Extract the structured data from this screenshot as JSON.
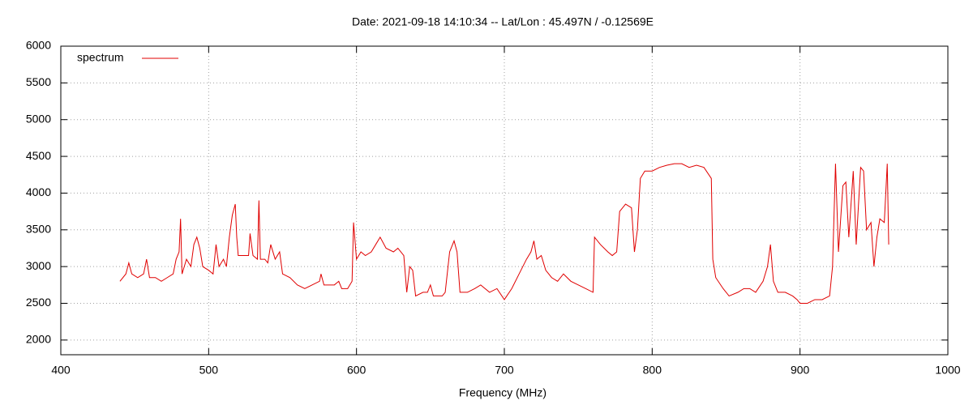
{
  "chart_data": {
    "type": "line",
    "title": "Date: 2021-09-18 14:10:34  --  Lat/Lon : 45.497N / -0.12569E",
    "xlabel": "Frequency (MHz)",
    "x": [
      440,
      444,
      446,
      448,
      452,
      456,
      458,
      460,
      464,
      468,
      472,
      476,
      478,
      480,
      481,
      482,
      485,
      488,
      490,
      492,
      494,
      496,
      500,
      503,
      505,
      507,
      510,
      512,
      514,
      516,
      518,
      519,
      520,
      524,
      527,
      528,
      530,
      533,
      534,
      535,
      538,
      540,
      542,
      545,
      548,
      550,
      555,
      560,
      565,
      570,
      575,
      576,
      578,
      585,
      588,
      590,
      594,
      597,
      598,
      600,
      603,
      606,
      610,
      613,
      616,
      620,
      625,
      628,
      632,
      634,
      636,
      638,
      640,
      645,
      648,
      650,
      652,
      658,
      660,
      663,
      666,
      668,
      670,
      675,
      680,
      684,
      690,
      695,
      700,
      705,
      710,
      715,
      718,
      720,
      722,
      725,
      728,
      732,
      736,
      740,
      745,
      750,
      755,
      760,
      761,
      765,
      770,
      773,
      776,
      778,
      782,
      786,
      788,
      790,
      792,
      795,
      800,
      805,
      810,
      815,
      820,
      825,
      830,
      835,
      840,
      841,
      843,
      848,
      852,
      858,
      862,
      866,
      870,
      875,
      878,
      880,
      882,
      885,
      890,
      895,
      898,
      900,
      905,
      910,
      915,
      920,
      922,
      924,
      926,
      929,
      931,
      933,
      936,
      938,
      941,
      943,
      945,
      948,
      950,
      952,
      954,
      957,
      959,
      960
    ],
    "series": [
      {
        "name": "spectrum",
        "color": "#e00000",
        "values": [
          2800,
          2900,
          3050,
          2900,
          2850,
          2900,
          3100,
          2850,
          2850,
          2800,
          2850,
          2900,
          3100,
          3200,
          3650,
          2900,
          3100,
          3000,
          3300,
          3400,
          3250,
          3000,
          2950,
          2900,
          3300,
          3000,
          3100,
          3000,
          3400,
          3700,
          3850,
          3400,
          3150,
          3150,
          3150,
          3450,
          3150,
          3100,
          3900,
          3100,
          3100,
          3050,
          3300,
          3100,
          3200,
          2900,
          2850,
          2750,
          2700,
          2750,
          2800,
          2900,
          2750,
          2750,
          2800,
          2700,
          2700,
          2800,
          3600,
          3100,
          3200,
          3150,
          3200,
          3300,
          3400,
          3250,
          3200,
          3250,
          3150,
          2650,
          3000,
          2950,
          2600,
          2650,
          2650,
          2750,
          2600,
          2600,
          2650,
          3200,
          3350,
          3200,
          2650,
          2650,
          2700,
          2750,
          2650,
          2700,
          2550,
          2700,
          2900,
          3100,
          3200,
          3350,
          3100,
          3150,
          2950,
          2850,
          2800,
          2900,
          2800,
          2750,
          2700,
          2650,
          3400,
          3300,
          3200,
          3150,
          3200,
          3750,
          3850,
          3800,
          3200,
          3500,
          4200,
          4300,
          4300,
          4350,
          4380,
          4400,
          4400,
          4350,
          4380,
          4350,
          4200,
          3100,
          2850,
          2700,
          2600,
          2650,
          2700,
          2700,
          2650,
          2800,
          3000,
          3300,
          2800,
          2650,
          2650,
          2600,
          2550,
          2500,
          2500,
          2550,
          2550,
          2600,
          3000,
          4400,
          3200,
          4100,
          4150,
          3400,
          4300,
          3300,
          4350,
          4300,
          3500,
          3600,
          3000,
          3400,
          3650,
          3600,
          4400,
          3300
        ]
      }
    ],
    "xlim": [
      400,
      1000
    ],
    "xticks": [
      400,
      500,
      600,
      700,
      800,
      900,
      1000
    ],
    "ylim": [
      1800,
      6000
    ],
    "yticks": [
      2000,
      2500,
      3000,
      3500,
      4000,
      4500,
      5000,
      5500,
      6000
    ],
    "grid": true,
    "legend": "top-left"
  }
}
